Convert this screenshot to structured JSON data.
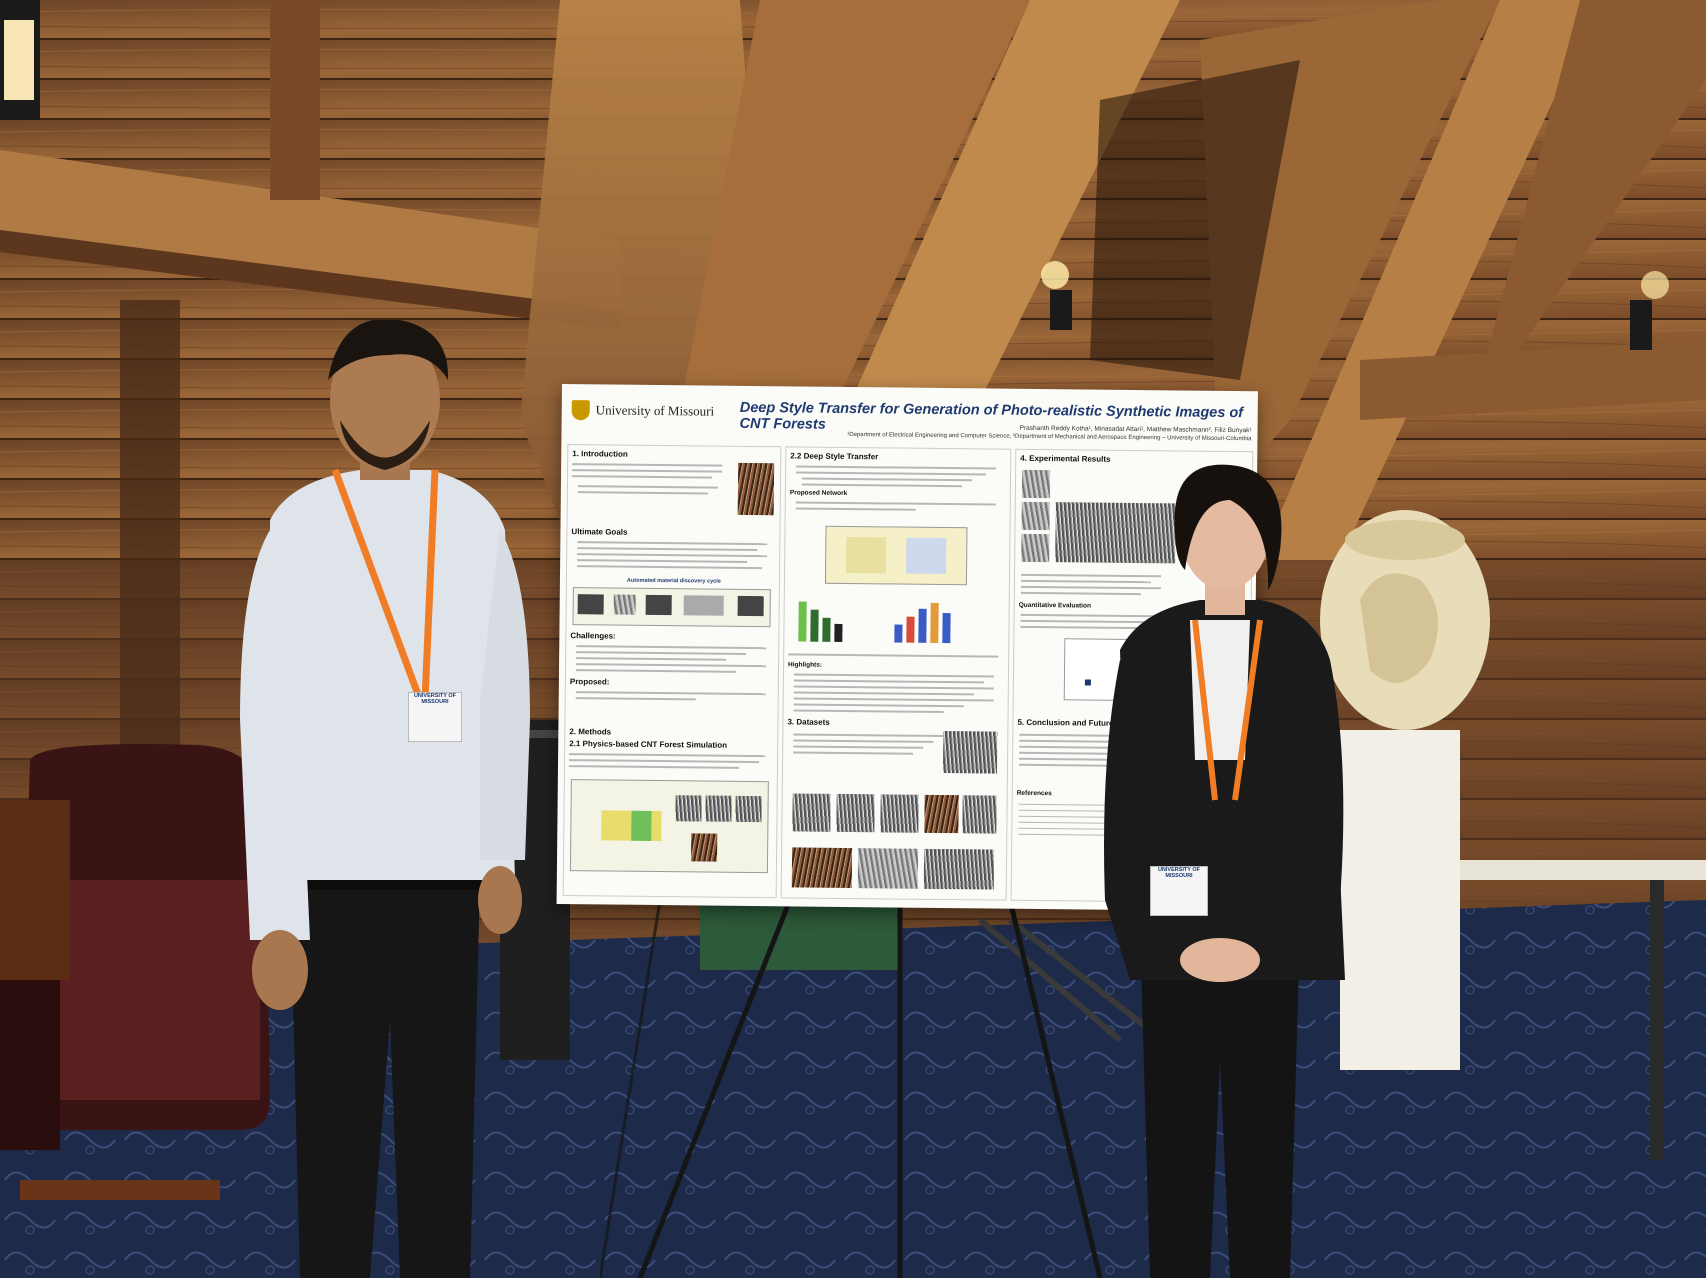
{
  "poster": {
    "university": "University of Missouri",
    "title": "Deep Style Transfer for Generation of Photo-realistic Synthetic Images of CNT Forests",
    "authors": "Prashanth Reddy Kotha¹, Minasadat Attari¹, Matthew Maschmann², Filiz Bunyak¹",
    "affiliations": "¹Department of Electrical Engineering and Computer Science, ²Department of Mechanical and Aerospace Engineering – University of Missouri-Columbia",
    "sections": {
      "intro": "1. Introduction",
      "goals": "Ultimate Goals",
      "goals_figure": "Automated material discovery cycle",
      "challenges": "Challenges:",
      "proposed": "Proposed:",
      "methods": "2. Methods",
      "sim": "2.1 Physics-based CNT Forest Simulation",
      "dst": "2.2 Deep Style Transfer",
      "network": "Proposed Network",
      "highlights": "Highlights:",
      "datasets": "3. Datasets",
      "results": "4. Experimental Results",
      "quant": "Quantitative Evaluation",
      "conclusion": "5. Conclusion and Future Work",
      "references": "References"
    }
  },
  "badges": {
    "left": "UNIVERSITY OF MISSOURI",
    "right": "UNIVERSITY OF MISSOURI"
  },
  "colors": {
    "wood": "#8a5a32",
    "wood_dark": "#4a2c18",
    "carpet": "#1c2744",
    "lanyard": "#f07c26",
    "suit": "#181818",
    "poster_title": "#1f3a70"
  }
}
